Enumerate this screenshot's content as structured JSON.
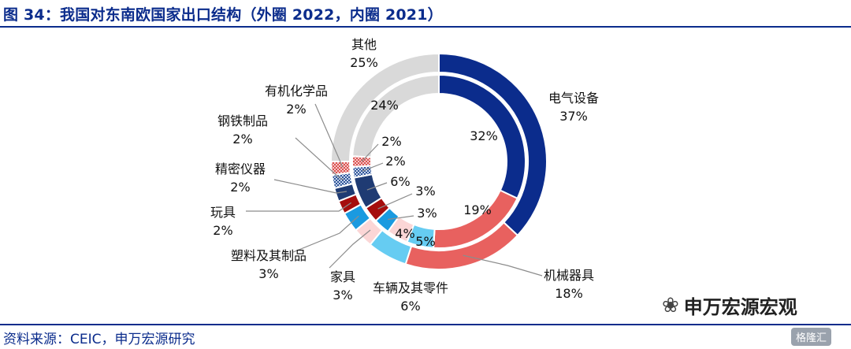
{
  "header": {
    "title": "图 34：我国对东南欧国家出口结构（外圈 2022，内圈 2021）"
  },
  "footer": {
    "source": "资料来源：CEIC，申万宏源研究"
  },
  "watermark": {
    "text": "申万宏源宏观",
    "icon": "wechat-icon",
    "logo_text": "格隆汇"
  },
  "chart_data": [
    {
      "type": "pie",
      "ring": "outer",
      "categories": [
        "电气设备",
        "机械器具",
        "车辆及其零件",
        "家具",
        "塑料及其制品",
        "玩具",
        "精密仪器",
        "钢铁制品",
        "有机化学品",
        "其他"
      ],
      "values": [
        37,
        18,
        6,
        3,
        3,
        2,
        2,
        2,
        2,
        25
      ],
      "labels": [
        "37%",
        "18%",
        "6%",
        "3%",
        "3%",
        "2%",
        "2%",
        "2%",
        "2%",
        "25%"
      ]
    },
    {
      "type": "pie",
      "ring": "inner",
      "categories": [
        "电气设备",
        "机械器具",
        "车辆及其零件",
        "家具",
        "塑料及其制品",
        "玩具",
        "精密仪器",
        "钢铁制品",
        "有机化学品",
        "其他"
      ],
      "values": [
        32,
        19,
        5,
        4,
        3,
        3,
        6,
        2,
        2,
        24
      ],
      "labels": [
        "32%",
        "19%",
        "5%",
        "4%",
        "3%",
        "3%",
        "6%",
        "2%",
        "2%",
        "24%"
      ]
    }
  ],
  "colors": [
    "#0b2c8c",
    "#e8615f",
    "#66ccf2",
    "#fbd6d6",
    "#1a9ae0",
    "#a50d0d",
    "#1f3b73",
    "#2f5597",
    "#e8848c",
    "#d9d9d9"
  ]
}
